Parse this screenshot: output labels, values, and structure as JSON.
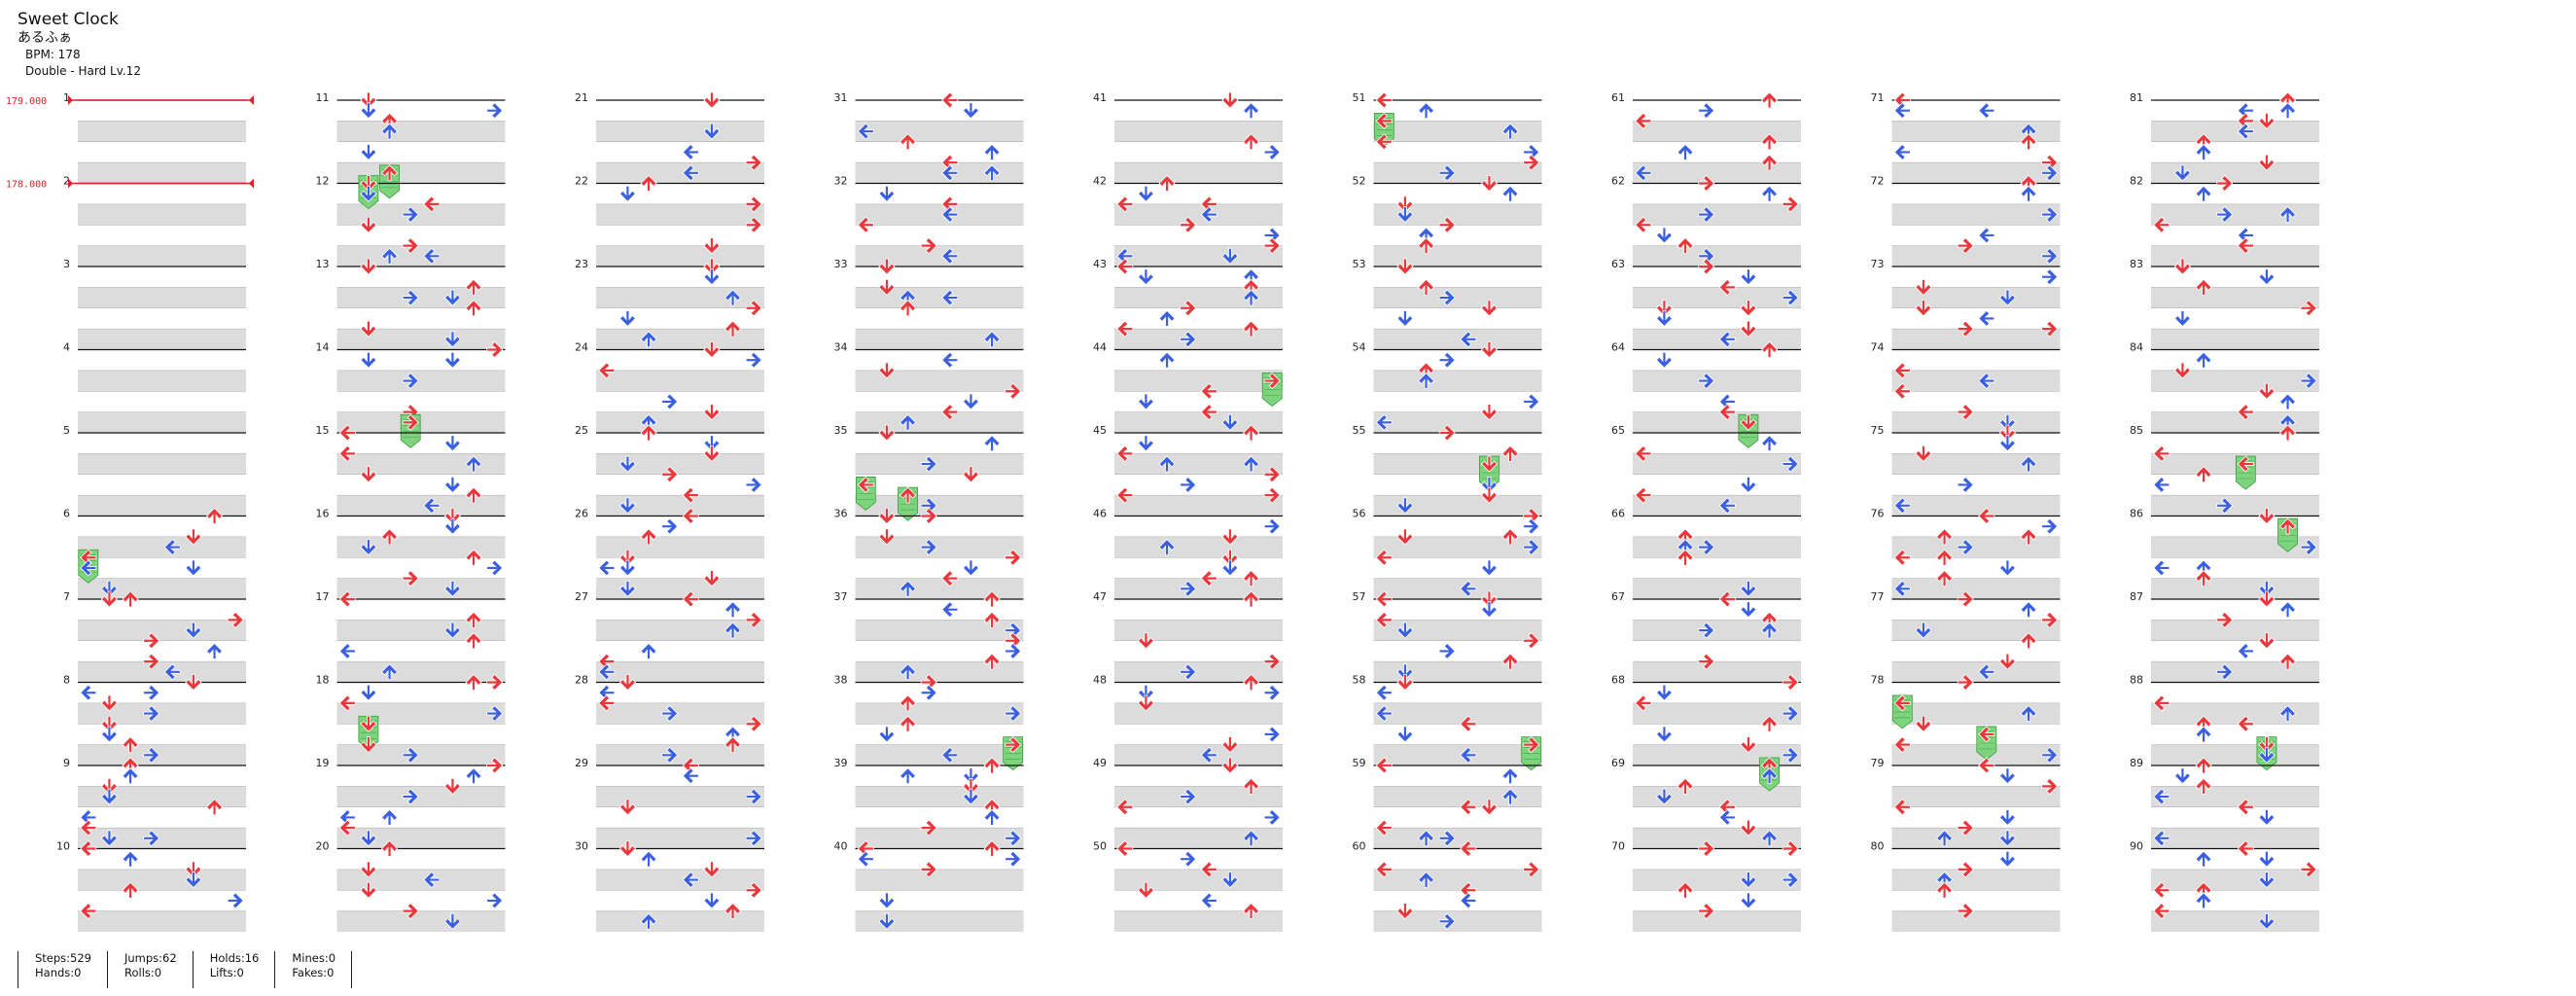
{
  "song": {
    "title": "Sweet Clock",
    "artist": "あるふぁ",
    "bpm_text": "BPM: 178",
    "difficulty_text": "Double - Hard Lv.12"
  },
  "bpm_changes": [
    {
      "measure": 1,
      "label": "179.000"
    },
    {
      "measure": 2,
      "label": "178.000"
    }
  ],
  "chart_data": {
    "type": "stepchart",
    "mode": "Double",
    "difficulty": "Hard",
    "level": 12,
    "bpm": 178,
    "measures": 90,
    "measures_per_column": 10,
    "columns": 9,
    "rows_per_measure": 4,
    "lanes": 8,
    "lane_directions": [
      "left",
      "down",
      "up",
      "right",
      "left",
      "down",
      "up",
      "right"
    ],
    "colors": {
      "quarter": "#e8383d",
      "eighth": "#3a5fe0",
      "hold": "#7ed47e",
      "bpm": "#e02020"
    },
    "measure_labels": [
      "1",
      "2",
      "3",
      "4",
      "5",
      "6",
      "7",
      "8",
      "9",
      "10",
      "11",
      "12",
      "13",
      "14",
      "15",
      "16",
      "17",
      "18",
      "19",
      "20",
      "21",
      "22",
      "23",
      "24",
      "25",
      "26",
      "27",
      "28",
      "29",
      "30",
      "31",
      "32",
      "33",
      "34",
      "35",
      "36",
      "37",
      "38",
      "39",
      "40",
      "41",
      "42",
      "43",
      "44",
      "45",
      "46",
      "47",
      "48",
      "49",
      "50",
      "51",
      "52",
      "53",
      "54",
      "55",
      "56",
      "57",
      "58",
      "59",
      "60",
      "61",
      "62",
      "63",
      "64",
      "65",
      "66",
      "67",
      "68",
      "69",
      "70",
      "71",
      "72",
      "73",
      "74",
      "75",
      "76",
      "77",
      "78",
      "79",
      "80",
      "81",
      "82",
      "83",
      "84",
      "85",
      "86",
      "87",
      "88",
      "89",
      "90"
    ]
  },
  "stats": [
    {
      "key": "steps_hands",
      "line1": "Steps:529",
      "line2": "Hands:0"
    },
    {
      "key": "jumps_rolls",
      "line1": "Jumps:62",
      "line2": "Rolls:0"
    },
    {
      "key": "holds_lifts",
      "line1": "Holds:16",
      "line2": "Lifts:0"
    },
    {
      "key": "mines_fakes",
      "line1": "Mines:0",
      "line2": "Fakes:0"
    }
  ]
}
